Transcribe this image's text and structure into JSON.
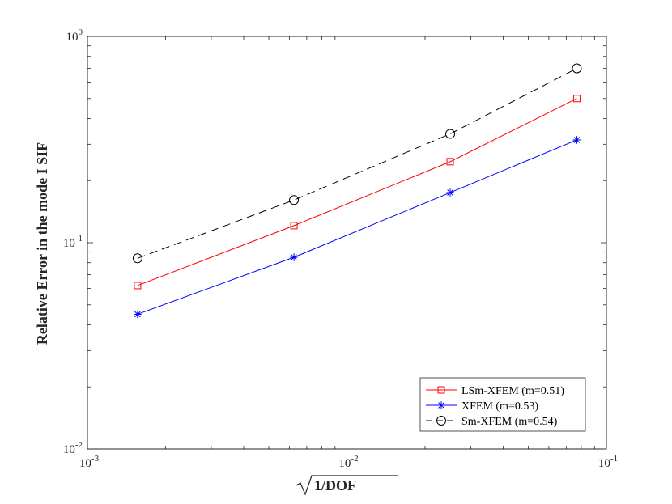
{
  "chart_data": {
    "type": "line",
    "title": "",
    "xlabel": "1/DOF",
    "xlabel_sqrt": true,
    "ylabel": "Relative Error in the mode I SIF",
    "xscale": "log",
    "yscale": "log",
    "xlim": [
      0.001,
      0.1
    ],
    "ylim": [
      0.01,
      1
    ],
    "grid": false,
    "legend_position": "bottom-right",
    "x_ticks": [
      {
        "value": 0.001,
        "base": "10",
        "exp": "-3"
      },
      {
        "value": 0.01,
        "base": "10",
        "exp": "-2"
      },
      {
        "value": 0.1,
        "base": "10",
        "exp": "-1"
      }
    ],
    "y_ticks": [
      {
        "value": 0.01,
        "base": "10",
        "exp": "-2"
      },
      {
        "value": 0.1,
        "base": "10",
        "exp": "-1"
      },
      {
        "value": 1,
        "base": "10",
        "exp": "0"
      }
    ],
    "series": [
      {
        "name": "LSm-XFEM (m=0.51)",
        "color": "#ff0000",
        "marker": "square",
        "dash": "solid",
        "x": [
          0.00156,
          0.00625,
          0.025,
          0.0769
        ],
        "y": [
          0.062,
          0.121,
          0.247,
          0.5
        ]
      },
      {
        "name": "XFEM (m=0.53)",
        "color": "#0000ff",
        "marker": "asterisk",
        "dash": "solid",
        "x": [
          0.00156,
          0.00625,
          0.025,
          0.0769
        ],
        "y": [
          0.045,
          0.085,
          0.175,
          0.315
        ]
      },
      {
        "name": "Sm-XFEM (m=0.54)",
        "color": "#000000",
        "marker": "circle",
        "dash": "dashed",
        "x": [
          0.00156,
          0.00625,
          0.025,
          0.0769
        ],
        "y": [
          0.084,
          0.161,
          0.337,
          0.7
        ]
      }
    ]
  }
}
